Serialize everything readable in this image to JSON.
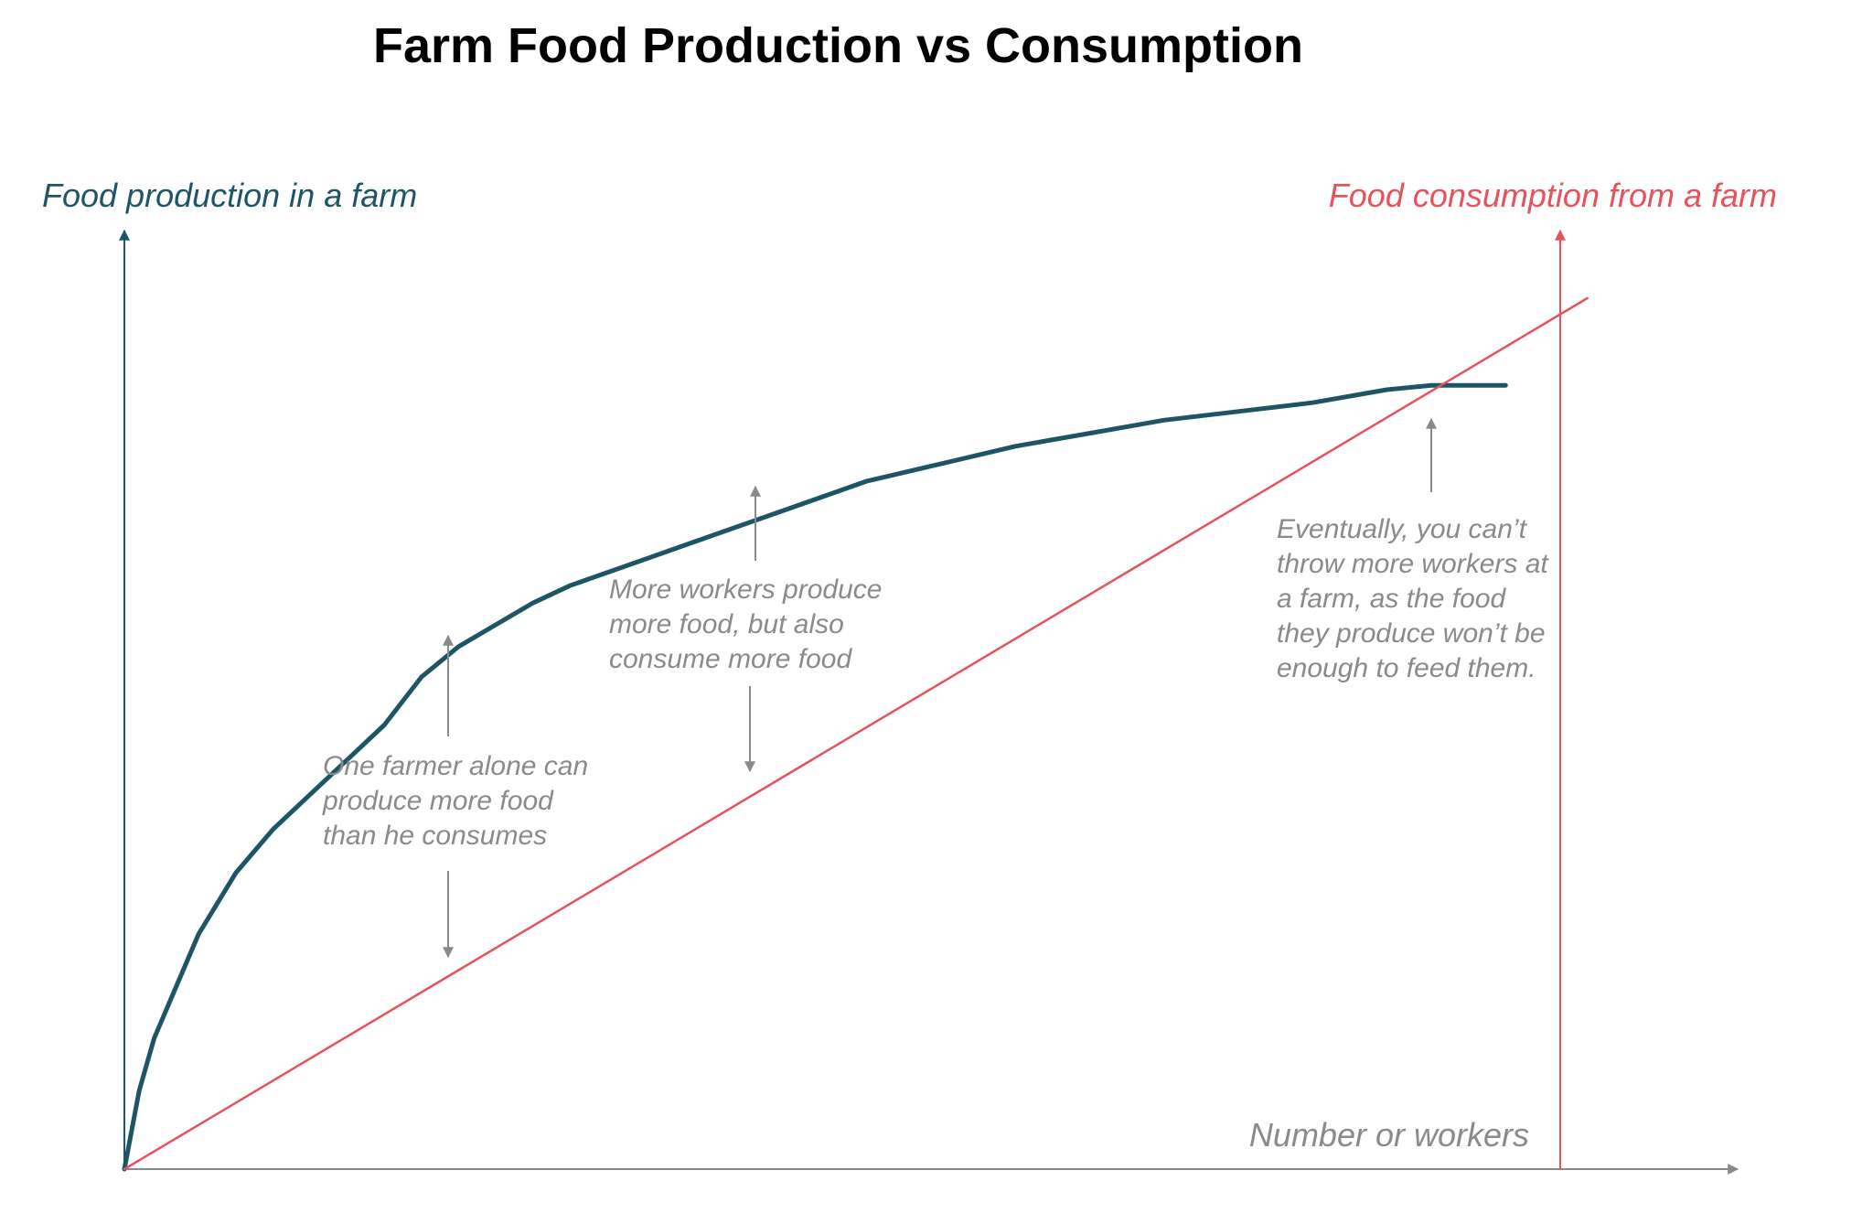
{
  "chart_data": {
    "type": "line",
    "title": "Farm Food Production vs Consumption",
    "ylabel_left": "Food production in a farm",
    "ylabel_right": "Food consumption from a farm",
    "xlabel": "Number or workers",
    "colors": {
      "production": "#1e5566",
      "consumption": "#e8525a",
      "axis": "#8a8a8a",
      "annotation": "#8a8a8a"
    },
    "series": [
      {
        "key": "production",
        "values": [
          [
            0,
            0
          ],
          [
            0.01,
            0.09
          ],
          [
            0.02,
            0.15
          ],
          [
            0.035,
            0.21
          ],
          [
            0.05,
            0.27
          ],
          [
            0.075,
            0.34
          ],
          [
            0.1,
            0.39
          ],
          [
            0.125,
            0.43
          ],
          [
            0.15,
            0.47
          ],
          [
            0.175,
            0.51
          ],
          [
            0.2,
            0.565
          ],
          [
            0.225,
            0.6
          ],
          [
            0.25,
            0.625
          ],
          [
            0.275,
            0.65
          ],
          [
            0.3,
            0.67
          ],
          [
            0.35,
            0.7
          ],
          [
            0.4,
            0.73
          ],
          [
            0.45,
            0.76
          ],
          [
            0.5,
            0.79
          ],
          [
            0.55,
            0.81
          ],
          [
            0.6,
            0.83
          ],
          [
            0.65,
            0.845
          ],
          [
            0.7,
            0.86
          ],
          [
            0.75,
            0.87
          ],
          [
            0.8,
            0.88
          ],
          [
            0.85,
            0.895
          ],
          [
            0.88,
            0.9
          ],
          [
            0.93,
            0.9
          ]
        ]
      },
      {
        "key": "consumption",
        "values": [
          [
            0,
            0
          ],
          [
            0.985,
            1.0
          ]
        ]
      }
    ],
    "annotations": [
      {
        "key": "one-farmer",
        "lines": [
          "One farmer alone can",
          "produce more food",
          "than he consumes"
        ]
      },
      {
        "key": "more-workers",
        "lines": [
          "More workers produce",
          "more food, but also",
          "consume more food"
        ]
      },
      {
        "key": "eventually",
        "lines": [
          "Eventually, you can’t",
          "throw more workers at",
          "a farm, as the food",
          "they produce won’t be",
          "enough to feed them."
        ]
      }
    ]
  }
}
